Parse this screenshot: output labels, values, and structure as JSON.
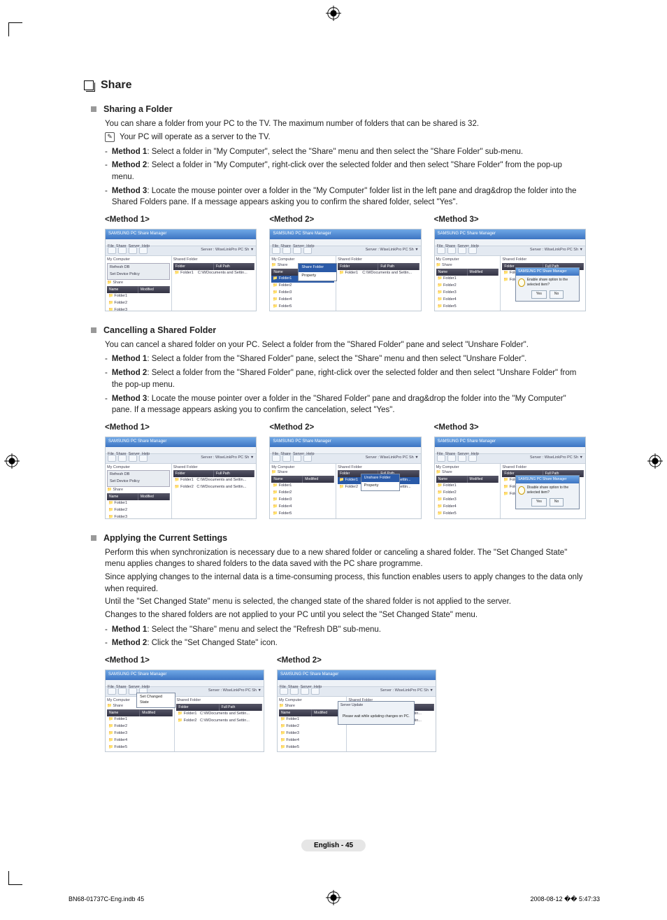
{
  "h1": "Share",
  "sections": [
    {
      "title": "Sharing a Folder",
      "intro": "You can share a folder from your PC to the TV.  The maximum number of folders that can be shared is 32.",
      "note": "Your PC will operate as a server to the TV.",
      "items": [
        {
          "label": "Method 1",
          "text": ": Select a folder in \"My Computer\", select the \"Share\" menu and then select the \"Share Folder\" sub-menu."
        },
        {
          "label": "Method 2",
          "text": ": Select a folder in \"My Computer\", right-click over the selected folder and then select \"Share Folder\" from the pop-up menu."
        },
        {
          "label": "Method 3",
          "text": ": Locate the mouse pointer over a folder in the \"My Computer\" folder list in the left pane and drag&drop the folder into the Shared Folders pane. If a message appears asking you to confirm the shared folder, select \"Yes\"."
        }
      ],
      "methods": [
        "<Method 1>",
        "<Method 2>",
        "<Method 3>"
      ]
    },
    {
      "title": "Cancelling a Shared Folder",
      "intro": "You can cancel a shared folder on your PC. Select a folder from the \"Shared Folder\" pane and select \"Unshare Folder\".",
      "items": [
        {
          "label": "Method 1",
          "text": ": Select a folder from the \"Shared Folder\" pane, select the \"Share\" menu and then select \"Unshare Folder\"."
        },
        {
          "label": "Method 2",
          "text": ": Select a folder from the \"Shared Folder\" pane, right-click over the selected folder and then select \"Unshare Folder\" from the pop-up menu."
        },
        {
          "label": "Method 3",
          "text": ": Locate the mouse pointer over a folder in the \"Shared Folder\" pane and drag&drop the folder into the \"My Computer\" pane. If a message appears asking you to confirm the cancelation, select \"Yes\"."
        }
      ],
      "methods": [
        "<Method 1>",
        "<Method 2>",
        "<Method 3>"
      ]
    },
    {
      "title": "Applying the Current Settings",
      "paras": [
        "Perform this when synchronization is necessary due to a new shared folder or canceling a shared folder. The \"Set Changed State\" menu applies changes to shared folders to the data saved with the PC share programme.",
        "Since applying changes to the internal data is a time-consuming process, this function enables users to apply changes to the data only when required.",
        "Until the \"Set Changed State\" menu is selected, the changed state of the shared folder is not applied to the server.",
        "Changes to the shared folders are not applied to your PC until you select the \"Set Changed State\" menu."
      ],
      "items": [
        {
          "label": "Method 1",
          "text": ": Select the \"Share\" menu and select the \"Refresh DB\" sub-menu."
        },
        {
          "label": "Method 2",
          "text": ": Click the \"Set Changed State\" icon."
        }
      ],
      "methods": [
        "<Method 1>",
        "<Method 2>"
      ]
    }
  ],
  "ss": {
    "title": "SAMSUNG PC Share Manager",
    "menus": [
      "File",
      "Share",
      "Server",
      "Help"
    ],
    "server": "Server : WiseLinkPro PC Sh ▼",
    "mycomp": "My Computer",
    "refresh": "Refresh DB",
    "setpolicy": "Set Device Policy",
    "setchanged": "Set Changed State",
    "unshare": "Unshare Folder",
    "sharefolder": "Share Folder",
    "property": "Property",
    "shared": "Shared Folder",
    "share": "Share",
    "colL": [
      "Name",
      "Modified"
    ],
    "colR": [
      "Folder",
      "Full Path"
    ],
    "folders": [
      "Folder1",
      "Folder2",
      "Folder3",
      "Folder4",
      "Folder5"
    ],
    "rfolder": "Folder1",
    "rpath": "C:\\WDocuments and Settin...",
    "dlgTitle": "SAMSUNG PC Share Manager",
    "dlgText": "Enable share option to the selected item?",
    "dlgText2": "Disable share option to the selected item?",
    "dlgWait": "Please wait while updating changes on PC.",
    "dlgUpd": "Server Update",
    "yes": "Yes",
    "no": "No"
  },
  "pageNum": "English - 45",
  "footL": "BN68-01737C-Eng.indb   45",
  "footR": "2008-08-12   �� 5:47:33"
}
